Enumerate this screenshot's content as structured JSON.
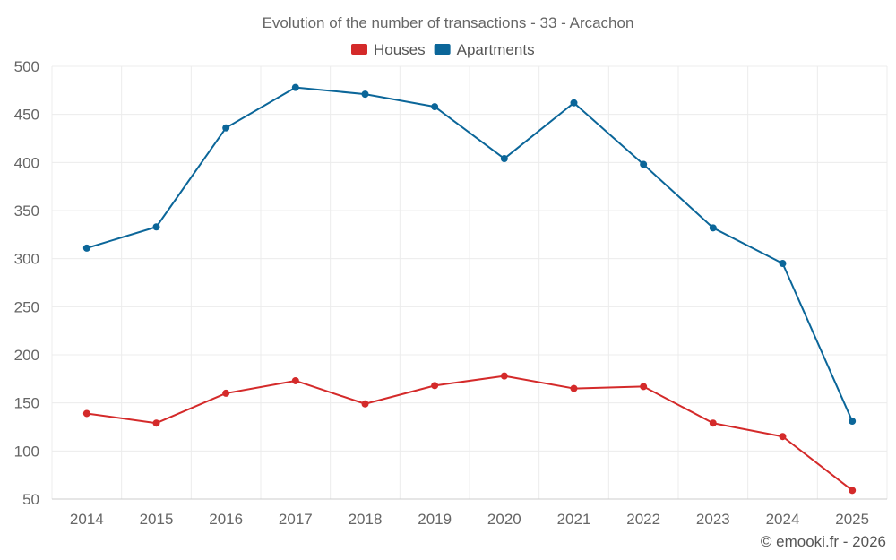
{
  "chart_data": {
    "type": "line",
    "title": "Evolution of the number of transactions - 33 - Arcachon",
    "xlabel": "",
    "ylabel": "",
    "categories": [
      "2014",
      "2015",
      "2016",
      "2017",
      "2018",
      "2019",
      "2020",
      "2021",
      "2022",
      "2023",
      "2024",
      "2025"
    ],
    "ylim": [
      50,
      500
    ],
    "yticks": [
      50,
      100,
      150,
      200,
      250,
      300,
      350,
      400,
      450,
      500
    ],
    "grid": true,
    "legend_position": "top-center",
    "series": [
      {
        "name": "Houses",
        "color": "#d42a2a",
        "values": [
          139,
          129,
          160,
          173,
          149,
          168,
          178,
          165,
          167,
          129,
          115,
          59
        ]
      },
      {
        "name": "Apartments",
        "color": "#0b6699",
        "values": [
          311,
          333,
          436,
          478,
          471,
          458,
          404,
          462,
          398,
          332,
          295,
          131
        ]
      }
    ]
  },
  "credit": "© emooki.fr - 2026"
}
